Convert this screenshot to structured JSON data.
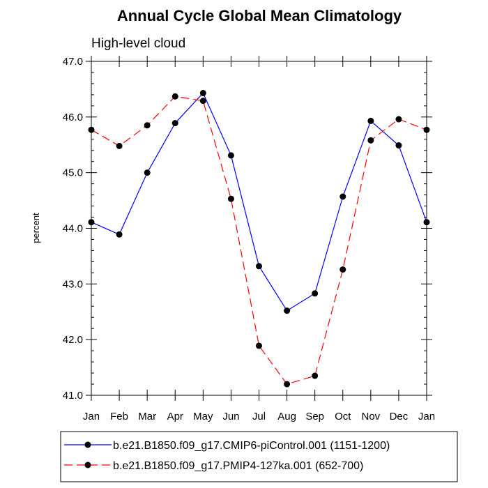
{
  "chart_data": {
    "type": "line",
    "title": "Annual Cycle Global Mean Climatology",
    "subtitle": "High-level cloud",
    "xlabel": "",
    "ylabel": "percent",
    "categories": [
      "Jan",
      "Feb",
      "Mar",
      "Apr",
      "May",
      "Jun",
      "Jul",
      "Aug",
      "Sep",
      "Oct",
      "Nov",
      "Dec",
      "Jan"
    ],
    "ylim": [
      41.0,
      47.0
    ],
    "yticks": [
      "41.0",
      "42.0",
      "43.0",
      "44.0",
      "45.0",
      "46.0",
      "47.0"
    ],
    "grid": false,
    "legend_position": "bottom",
    "series": [
      {
        "name": "b.e21.B1850.f09_g17.CMIP6-piControl.001 (1151-1200)",
        "color": "#0000ff",
        "line_style": "solid",
        "values": [
          44.11,
          43.89,
          45.0,
          45.89,
          46.43,
          45.31,
          43.32,
          42.52,
          42.83,
          44.57,
          45.93,
          45.49,
          44.11
        ]
      },
      {
        "name": "b.e21.B1850.f09_g17.PMIP4-127ka.001 (652-700)",
        "color": "#ff0000",
        "line_style": "dashed",
        "values": [
          45.77,
          45.48,
          45.85,
          46.37,
          46.29,
          44.53,
          41.89,
          41.2,
          41.35,
          43.26,
          45.58,
          45.96,
          45.77
        ]
      }
    ]
  }
}
